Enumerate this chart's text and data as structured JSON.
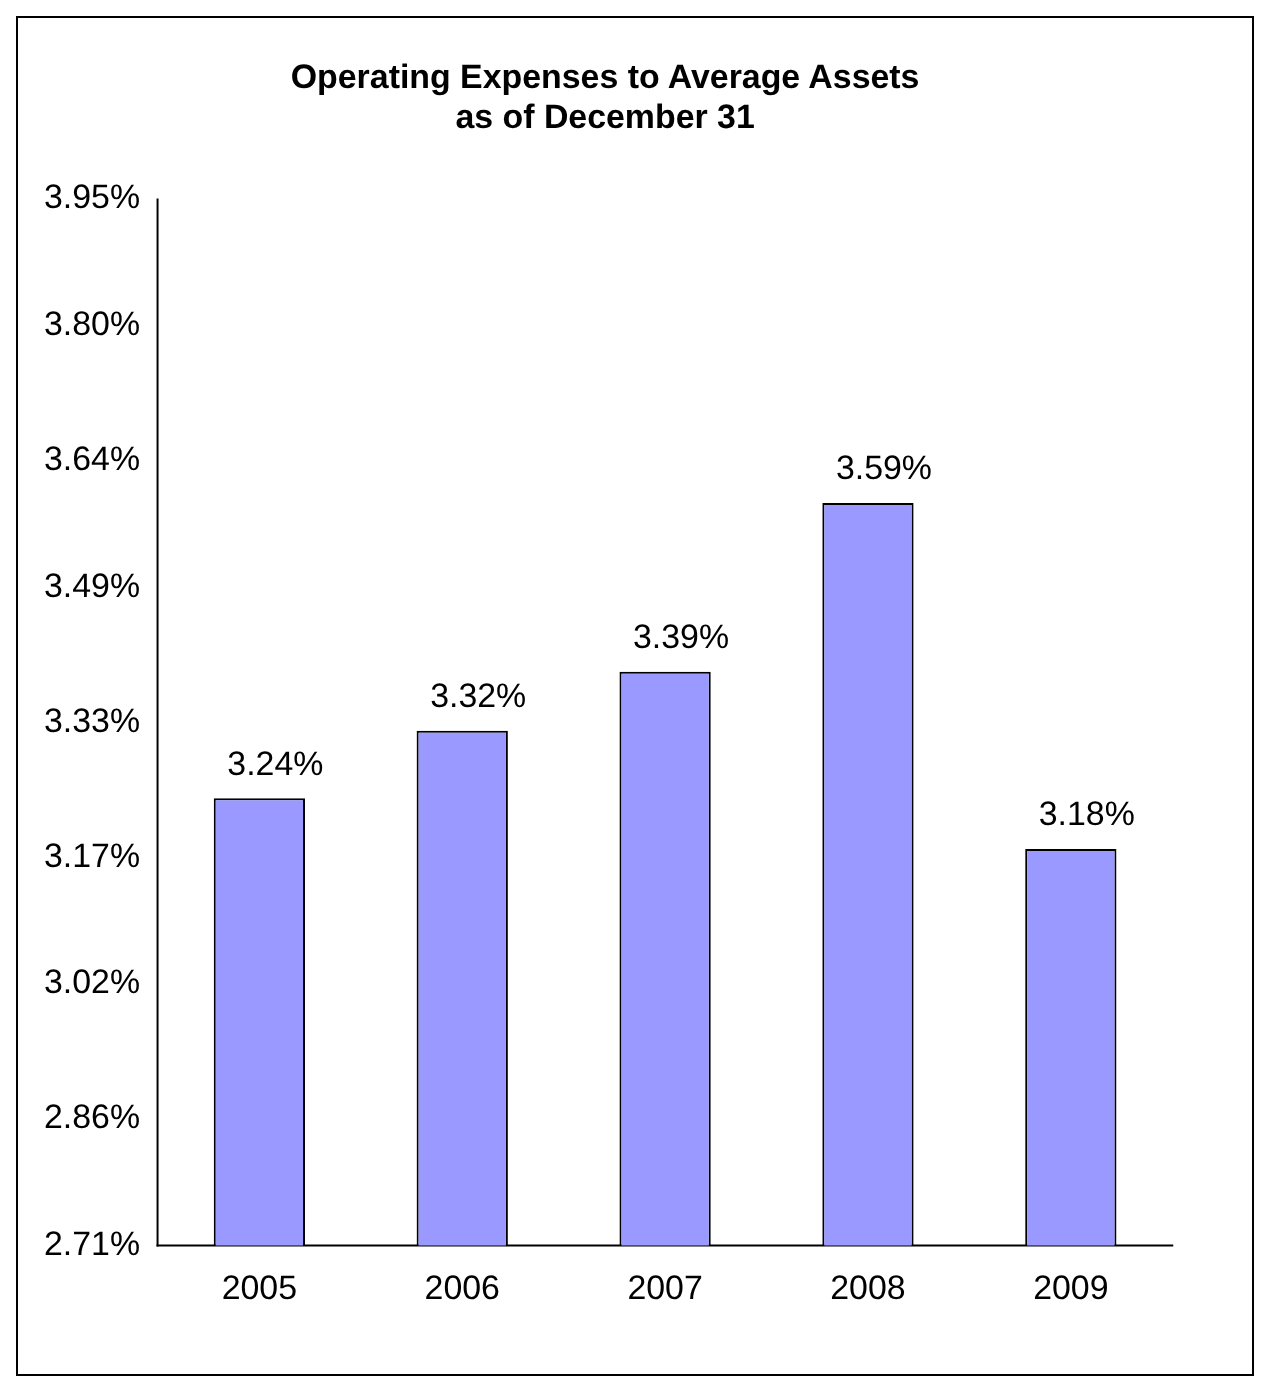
{
  "chart_data": {
    "type": "bar",
    "title": [
      "Operating Expenses to Average Assets",
      "as of December 31"
    ],
    "categories": [
      "2005",
      "2006",
      "2007",
      "2008",
      "2009"
    ],
    "values": [
      3.24,
      3.32,
      3.39,
      3.59,
      3.18
    ],
    "value_labels": [
      "3.24%",
      "3.32%",
      "3.39%",
      "3.59%",
      "3.18%"
    ],
    "color": "#9999ff",
    "ylim": [
      2.71,
      3.95
    ],
    "yticks": [
      {
        "value": 2.71,
        "label": "2.71%"
      },
      {
        "value": 2.86,
        "label": "2.86%"
      },
      {
        "value": 3.02,
        "label": "3.02%"
      },
      {
        "value": 3.17,
        "label": "3.17%"
      },
      {
        "value": 3.33,
        "label": "3.33%"
      },
      {
        "value": 3.49,
        "label": "3.49%"
      },
      {
        "value": 3.64,
        "label": "3.64%"
      },
      {
        "value": 3.8,
        "label": "3.80%"
      },
      {
        "value": 3.95,
        "label": "3.95%"
      }
    ],
    "grid": false,
    "legend": false
  }
}
